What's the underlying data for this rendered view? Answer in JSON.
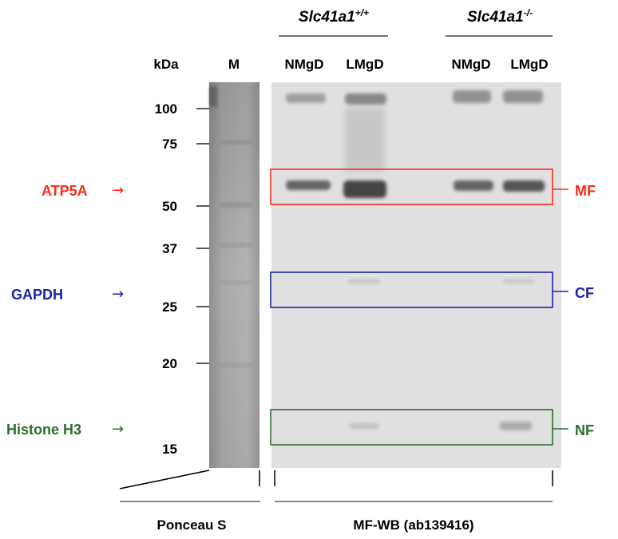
{
  "genotype_wt": {
    "name": "Slc41a1",
    "sup": "+/+"
  },
  "genotype_ko": {
    "name": "Slc41a1",
    "sup": "-/-"
  },
  "lane_labels": [
    "NMgD",
    "LMgD",
    "NMgD",
    "LMgD"
  ],
  "marker_header": "kDa",
  "marker_lane_label": "M",
  "marker_weights": [
    "100",
    "75",
    "50",
    "37",
    "25",
    "20",
    "15"
  ],
  "proteins": [
    {
      "label": "ATP5A",
      "fraction": "MF",
      "color": "#ff2a1a"
    },
    {
      "label": "GAPDH",
      "fraction": "CF",
      "color": "#1a22a8"
    },
    {
      "label": "Histone H3",
      "fraction": "NF",
      "color": "#2e6b2e"
    }
  ],
  "arrow_glyph": "→",
  "ponceau_label": "Ponceau S",
  "wb_label": "MF-WB (ab139416)"
}
